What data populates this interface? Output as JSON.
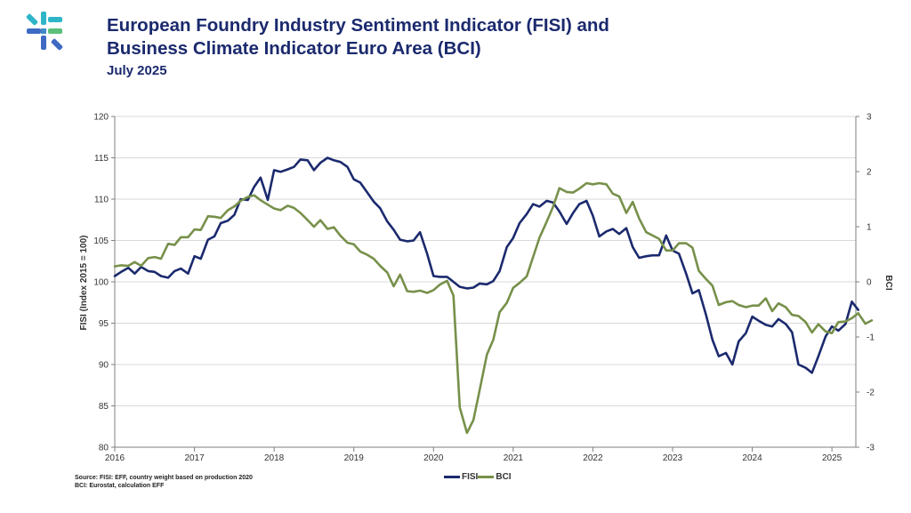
{
  "header": {
    "title_line1": "European Foundry Industry Sentiment Indicator (FISI) and",
    "title_line2": "Business Climate Indicator Euro Area (BCI)",
    "subtitle": "July 2025",
    "logo_icon": "eff-logo-icon"
  },
  "footer": {
    "source_line1": "Source: FISI: EFF, country weight based on production 2020",
    "source_line2": "BCI: Eurostat, calculation EFF"
  },
  "colors": {
    "fisi": "#1b2a6e",
    "bci": "#77904a",
    "title": "#1b2a6e",
    "grid": "#d9d9d9",
    "axis": "#7f7f7f"
  },
  "chart_data": {
    "type": "line",
    "title": "European Foundry Industry Sentiment Indicator (FISI) and Business Climate Indicator Euro Area (BCI)",
    "subtitle": "July 2025",
    "ylabel": "FISI (Index 2015 = 100)",
    "y2label": "BCI",
    "xlim": [
      2016,
      2025.3
    ],
    "ylim": [
      80,
      120
    ],
    "y2lim": [
      -3,
      3
    ],
    "x_ticks": [
      2016,
      2017,
      2018,
      2019,
      2020,
      2021,
      2022,
      2023,
      2024,
      2025
    ],
    "y_ticks": [
      80,
      85,
      90,
      95,
      100,
      105,
      110,
      115,
      120
    ],
    "y2_ticks": [
      -3,
      -2,
      -1,
      0,
      1,
      2,
      3
    ],
    "grid": "horizontal",
    "legend_position": "bottom",
    "series": [
      {
        "name": "FISI",
        "axis": "left",
        "color": "#1b2a6e",
        "points": [
          [
            2016.0,
            100.7
          ],
          [
            2016.08,
            101.2
          ],
          [
            2016.17,
            101.7
          ],
          [
            2016.25,
            101.0
          ],
          [
            2016.33,
            101.8
          ],
          [
            2016.42,
            101.3
          ],
          [
            2016.5,
            101.2
          ],
          [
            2016.58,
            100.7
          ],
          [
            2016.67,
            100.5
          ],
          [
            2016.75,
            101.3
          ],
          [
            2016.83,
            101.6
          ],
          [
            2016.92,
            101.0
          ],
          [
            2017.0,
            103.1
          ],
          [
            2017.08,
            102.8
          ],
          [
            2017.17,
            105.1
          ],
          [
            2017.25,
            105.5
          ],
          [
            2017.33,
            107.1
          ],
          [
            2017.42,
            107.4
          ],
          [
            2017.5,
            108.1
          ],
          [
            2017.58,
            110.0
          ],
          [
            2017.67,
            109.9
          ],
          [
            2017.75,
            111.5
          ],
          [
            2017.83,
            112.6
          ],
          [
            2017.92,
            109.9
          ],
          [
            2018.0,
            113.5
          ],
          [
            2018.08,
            113.3
          ],
          [
            2018.17,
            113.6
          ],
          [
            2018.25,
            113.9
          ],
          [
            2018.33,
            114.8
          ],
          [
            2018.42,
            114.7
          ],
          [
            2018.5,
            113.5
          ],
          [
            2018.58,
            114.4
          ],
          [
            2018.67,
            115.0
          ],
          [
            2018.75,
            114.7
          ],
          [
            2018.83,
            114.5
          ],
          [
            2018.92,
            113.9
          ],
          [
            2019.0,
            112.4
          ],
          [
            2019.08,
            112.0
          ],
          [
            2019.17,
            110.8
          ],
          [
            2019.25,
            109.7
          ],
          [
            2019.33,
            108.9
          ],
          [
            2019.42,
            107.3
          ],
          [
            2019.5,
            106.3
          ],
          [
            2019.58,
            105.1
          ],
          [
            2019.67,
            104.9
          ],
          [
            2019.75,
            105.0
          ],
          [
            2019.83,
            106.0
          ],
          [
            2019.92,
            103.4
          ],
          [
            2020.0,
            100.7
          ],
          [
            2020.08,
            100.6
          ],
          [
            2020.17,
            100.6
          ],
          [
            2020.25,
            100.0
          ],
          [
            2020.33,
            99.4
          ],
          [
            2020.42,
            99.2
          ],
          [
            2020.5,
            99.3
          ],
          [
            2020.58,
            99.8
          ],
          [
            2020.67,
            99.7
          ],
          [
            2020.75,
            100.1
          ],
          [
            2020.83,
            101.3
          ],
          [
            2020.92,
            104.2
          ],
          [
            2021.0,
            105.3
          ],
          [
            2021.08,
            107.1
          ],
          [
            2021.17,
            108.2
          ],
          [
            2021.25,
            109.4
          ],
          [
            2021.33,
            109.1
          ],
          [
            2021.42,
            109.8
          ],
          [
            2021.5,
            109.6
          ],
          [
            2021.58,
            108.5
          ],
          [
            2021.67,
            107.0
          ],
          [
            2021.75,
            108.3
          ],
          [
            2021.83,
            109.4
          ],
          [
            2021.92,
            109.8
          ],
          [
            2022.0,
            108.0
          ],
          [
            2022.08,
            105.5
          ],
          [
            2022.17,
            106.1
          ],
          [
            2022.25,
            106.4
          ],
          [
            2022.33,
            105.8
          ],
          [
            2022.42,
            106.5
          ],
          [
            2022.5,
            104.2
          ],
          [
            2022.58,
            102.9
          ],
          [
            2022.67,
            103.1
          ],
          [
            2022.75,
            103.2
          ],
          [
            2022.83,
            103.2
          ],
          [
            2022.92,
            105.6
          ],
          [
            2023.0,
            103.8
          ],
          [
            2023.08,
            103.4
          ],
          [
            2023.17,
            101.0
          ],
          [
            2023.25,
            98.6
          ],
          [
            2023.33,
            99.0
          ],
          [
            2023.42,
            96.0
          ],
          [
            2023.5,
            93.0
          ],
          [
            2023.58,
            91.0
          ],
          [
            2023.67,
            91.4
          ],
          [
            2023.75,
            90.0
          ],
          [
            2023.83,
            92.8
          ],
          [
            2023.92,
            93.8
          ],
          [
            2024.0,
            95.8
          ],
          [
            2024.08,
            95.3
          ],
          [
            2024.17,
            94.8
          ],
          [
            2024.25,
            94.6
          ],
          [
            2024.33,
            95.5
          ],
          [
            2024.42,
            94.9
          ],
          [
            2024.5,
            93.9
          ],
          [
            2024.58,
            90.0
          ],
          [
            2024.67,
            89.6
          ],
          [
            2024.75,
            89.0
          ],
          [
            2024.83,
            91.0
          ],
          [
            2024.92,
            93.4
          ],
          [
            2025.0,
            94.6
          ],
          [
            2025.08,
            94.1
          ],
          [
            2025.17,
            94.9
          ],
          [
            2025.25,
            97.6
          ],
          [
            2025.33,
            96.6
          ]
        ]
      },
      {
        "name": "BCI",
        "axis": "right",
        "color": "#77904a",
        "points": [
          [
            2016.0,
            0.28
          ],
          [
            2016.08,
            0.3
          ],
          [
            2016.17,
            0.29
          ],
          [
            2016.25,
            0.36
          ],
          [
            2016.33,
            0.29
          ],
          [
            2016.42,
            0.43
          ],
          [
            2016.5,
            0.45
          ],
          [
            2016.58,
            0.42
          ],
          [
            2016.67,
            0.69
          ],
          [
            2016.75,
            0.67
          ],
          [
            2016.83,
            0.81
          ],
          [
            2016.92,
            0.81
          ],
          [
            2017.0,
            0.95
          ],
          [
            2017.08,
            0.94
          ],
          [
            2017.17,
            1.19
          ],
          [
            2017.25,
            1.18
          ],
          [
            2017.33,
            1.16
          ],
          [
            2017.42,
            1.3
          ],
          [
            2017.5,
            1.37
          ],
          [
            2017.58,
            1.47
          ],
          [
            2017.67,
            1.54
          ],
          [
            2017.75,
            1.57
          ],
          [
            2017.83,
            1.48
          ],
          [
            2017.92,
            1.4
          ],
          [
            2018.0,
            1.33
          ],
          [
            2018.08,
            1.3
          ],
          [
            2018.17,
            1.38
          ],
          [
            2018.25,
            1.34
          ],
          [
            2018.33,
            1.25
          ],
          [
            2018.42,
            1.12
          ],
          [
            2018.5,
            1.0
          ],
          [
            2018.58,
            1.12
          ],
          [
            2018.67,
            0.96
          ],
          [
            2018.75,
            0.99
          ],
          [
            2018.83,
            0.84
          ],
          [
            2018.92,
            0.71
          ],
          [
            2019.0,
            0.68
          ],
          [
            2019.08,
            0.55
          ],
          [
            2019.17,
            0.49
          ],
          [
            2019.25,
            0.42
          ],
          [
            2019.33,
            0.29
          ],
          [
            2019.42,
            0.17
          ],
          [
            2019.5,
            -0.08
          ],
          [
            2019.58,
            0.13
          ],
          [
            2019.67,
            -0.17
          ],
          [
            2019.75,
            -0.18
          ],
          [
            2019.83,
            -0.16
          ],
          [
            2019.92,
            -0.2
          ],
          [
            2020.0,
            -0.15
          ],
          [
            2020.08,
            -0.05
          ],
          [
            2020.17,
            0.02
          ],
          [
            2020.25,
            -0.25
          ],
          [
            2020.33,
            -2.28
          ],
          [
            2020.42,
            -2.74
          ],
          [
            2020.5,
            -2.51
          ],
          [
            2020.58,
            -1.96
          ],
          [
            2020.67,
            -1.32
          ],
          [
            2020.75,
            -1.05
          ],
          [
            2020.83,
            -0.55
          ],
          [
            2020.92,
            -0.38
          ],
          [
            2021.0,
            -0.11
          ],
          [
            2021.08,
            -0.02
          ],
          [
            2021.17,
            0.1
          ],
          [
            2021.25,
            0.45
          ],
          [
            2021.33,
            0.8
          ],
          [
            2021.42,
            1.09
          ],
          [
            2021.5,
            1.36
          ],
          [
            2021.58,
            1.7
          ],
          [
            2021.67,
            1.63
          ],
          [
            2021.75,
            1.62
          ],
          [
            2021.83,
            1.69
          ],
          [
            2021.92,
            1.79
          ],
          [
            2022.0,
            1.77
          ],
          [
            2022.08,
            1.79
          ],
          [
            2022.17,
            1.77
          ],
          [
            2022.25,
            1.6
          ],
          [
            2022.33,
            1.55
          ],
          [
            2022.42,
            1.25
          ],
          [
            2022.5,
            1.45
          ],
          [
            2022.58,
            1.15
          ],
          [
            2022.67,
            0.9
          ],
          [
            2022.75,
            0.84
          ],
          [
            2022.83,
            0.78
          ],
          [
            2022.92,
            0.57
          ],
          [
            2023.0,
            0.57
          ],
          [
            2023.08,
            0.7
          ],
          [
            2023.17,
            0.7
          ],
          [
            2023.25,
            0.62
          ],
          [
            2023.33,
            0.2
          ],
          [
            2023.42,
            0.05
          ],
          [
            2023.5,
            -0.07
          ],
          [
            2023.58,
            -0.42
          ],
          [
            2023.67,
            -0.37
          ],
          [
            2023.75,
            -0.35
          ],
          [
            2023.83,
            -0.42
          ],
          [
            2023.92,
            -0.46
          ],
          [
            2024.0,
            -0.43
          ],
          [
            2024.08,
            -0.43
          ],
          [
            2024.17,
            -0.3
          ],
          [
            2024.25,
            -0.53
          ],
          [
            2024.33,
            -0.39
          ],
          [
            2024.42,
            -0.46
          ],
          [
            2024.5,
            -0.6
          ],
          [
            2024.58,
            -0.62
          ],
          [
            2024.67,
            -0.73
          ],
          [
            2024.75,
            -0.92
          ],
          [
            2024.83,
            -0.77
          ],
          [
            2024.92,
            -0.9
          ],
          [
            2025.0,
            -0.93
          ],
          [
            2025.08,
            -0.73
          ],
          [
            2025.17,
            -0.72
          ],
          [
            2025.25,
            -0.66
          ],
          [
            2025.33,
            -0.57
          ],
          [
            2025.42,
            -0.76
          ],
          [
            2025.5,
            -0.7
          ]
        ]
      }
    ]
  }
}
